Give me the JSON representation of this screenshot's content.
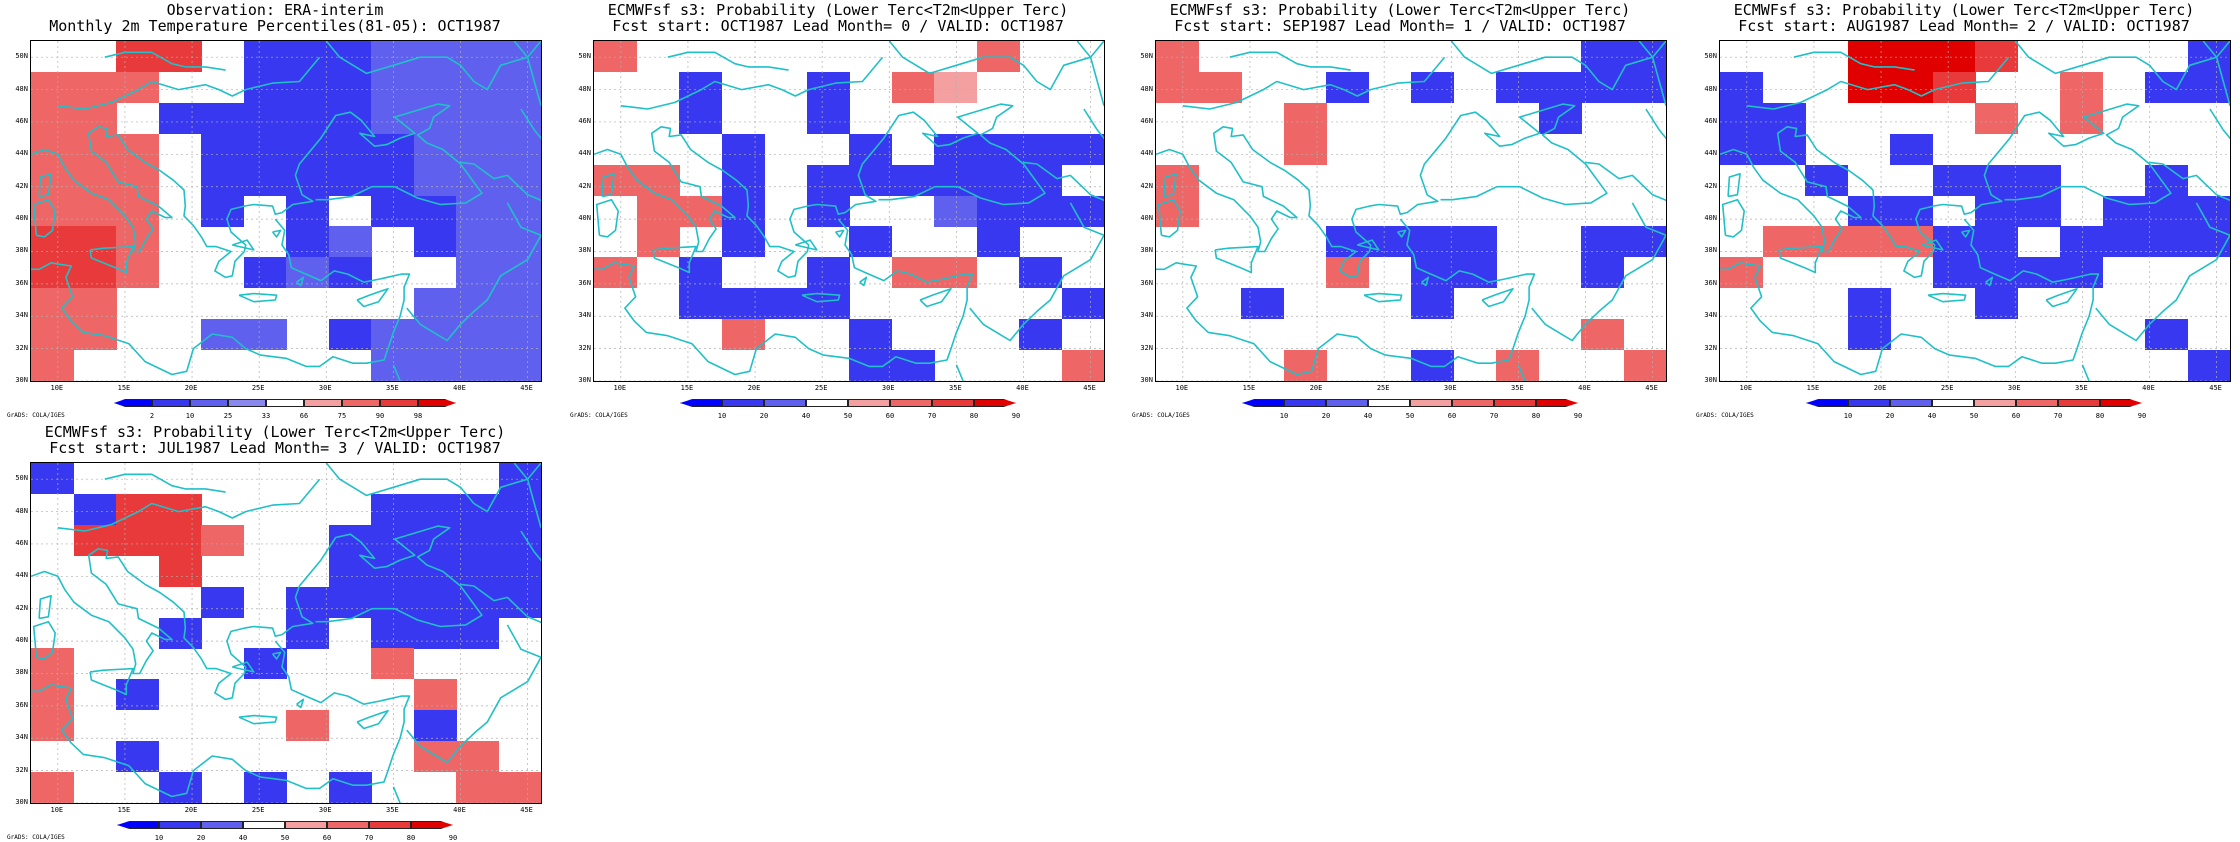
{
  "page": {
    "grads_credit": "GrADS: COLA/IGES"
  },
  "axes": {
    "lat_labels": [
      "50N",
      "48N",
      "46N",
      "44N",
      "42N",
      "40N",
      "38N",
      "36N",
      "34N",
      "32N",
      "30N"
    ],
    "lon_labels": [
      "10E",
      "15E",
      "20E",
      "25E",
      "30E",
      "35E",
      "40E",
      "45E"
    ]
  },
  "colors": {
    "obs": [
      "#0000ff",
      "#3838f0",
      "#6060ee",
      "#8888ee",
      "#ffffff",
      "#f4a0a0",
      "#ee6666",
      "#e83a3a",
      "#e00000"
    ],
    "prob": [
      "#0000ff",
      "#3838f0",
      "#6060ee",
      "#ffffff",
      "#f4a0a0",
      "#ee6666",
      "#e83a3a",
      "#e00000"
    ],
    "coast": "#20c0c8",
    "grid": "#b0b0b0"
  },
  "panels": [
    {
      "id": "obs",
      "title1": "Observation: ERA-interim",
      "title2": "Monthly 2m Temperature Percentiles(81-05): OCT1987",
      "colorbar": {
        "labels": [
          "2",
          "10",
          "25",
          "33",
          "66",
          "75",
          "90",
          "98"
        ],
        "palette": "obs"
      },
      "grid": [
        "..77.1112222",
        "666..1112222",
        "66.111112222",
        "666.11111222",
        "666.11111222",
        "666.1.1.1122",
        "776...12.122",
        "776..121..22",
        "66.......222",
        "66..22.12222",
        "6.......2222"
      ]
    },
    {
      "id": "lead0",
      "title1": "ECMWFsf s3: Probability (Lower Terc<T2m<Upper Terc)",
      "title2": "Fcst start: OCT1987  Lead Month= 0 / VALID: OCT1987",
      "colorbar": {
        "labels": [
          "10",
          "20",
          "40",
          "50",
          "60",
          "70",
          "80",
          "90"
        ],
        "palette": "prob"
      },
      "grid": [
        "5........5..",
        "..1..1.54...",
        "..1..1......",
        "...1..1.1111",
        "55.1.111111.",
        ".551.1..2111",
        ".5.1..1..1..",
        "5.1..1.55.1.",
        "..1111.....1",
        "...5..1...1.",
        "......11...5"
      ]
    },
    {
      "id": "lead1",
      "title1": "ECMWFsf s3: Probability (Lower Terc<T2m<Upper Terc)",
      "title2": "Fcst start: SEP1987  Lead Month= 1 / VALID: OCT1987",
      "colorbar": {
        "labels": [
          "10",
          "20",
          "40",
          "50",
          "60",
          "70",
          "80",
          "90"
        ],
        "palette": "prob"
      },
      "grid": [
        "5.........11",
        "55..1.1.1111",
        "...5.....1..",
        "...5........",
        "5...........",
        "5...........",
        "....1111..11",
        "....5.11..1.",
        "..1...1.....",
        "..........5.",
        "...5..1.5..5"
      ]
    },
    {
      "id": "lead2",
      "title1": "ECMWFsf s3: Probability (Lower Terc<T2m<Upper Terc)",
      "title2": "Fcst start: AUG1987  Lead Month= 2 / VALID: OCT1987",
      "colorbar": {
        "labels": [
          "10",
          "20",
          "40",
          "50",
          "60",
          "70",
          "80",
          "90"
        ],
        "palette": "prob"
      },
      "grid": [
        "...7776....1",
        "1..776..5.11",
        "11....5.5...",
        "11..1.......",
        "..1..111..1.",
        "...11.11.111",
        ".555511.1111",
        "5....1111...",
        "...1..1.....",
        "...1......1.",
        "...........1"
      ]
    },
    {
      "id": "lead3",
      "title1": "ECMWFsf s3: Probability (Lower Terc<T2m<Upper Terc)",
      "title2": "Fcst start: JUL1987  Lead Month= 3 / VALID: OCT1987",
      "colorbar": {
        "labels": [
          "10",
          "20",
          "40",
          "50",
          "60",
          "70",
          "80",
          "90"
        ],
        "palette": "prob"
      },
      "grid": [
        "1..........1",
        ".166....1111",
        ".6665..11111",
        "...6...11111",
        "....1.111111",
        "...1..1.111.",
        "5....1..5...",
        "5.1......5..",
        "5.....5..1..",
        "..1......55.",
        "5..1.1.1..55"
      ]
    }
  ]
}
